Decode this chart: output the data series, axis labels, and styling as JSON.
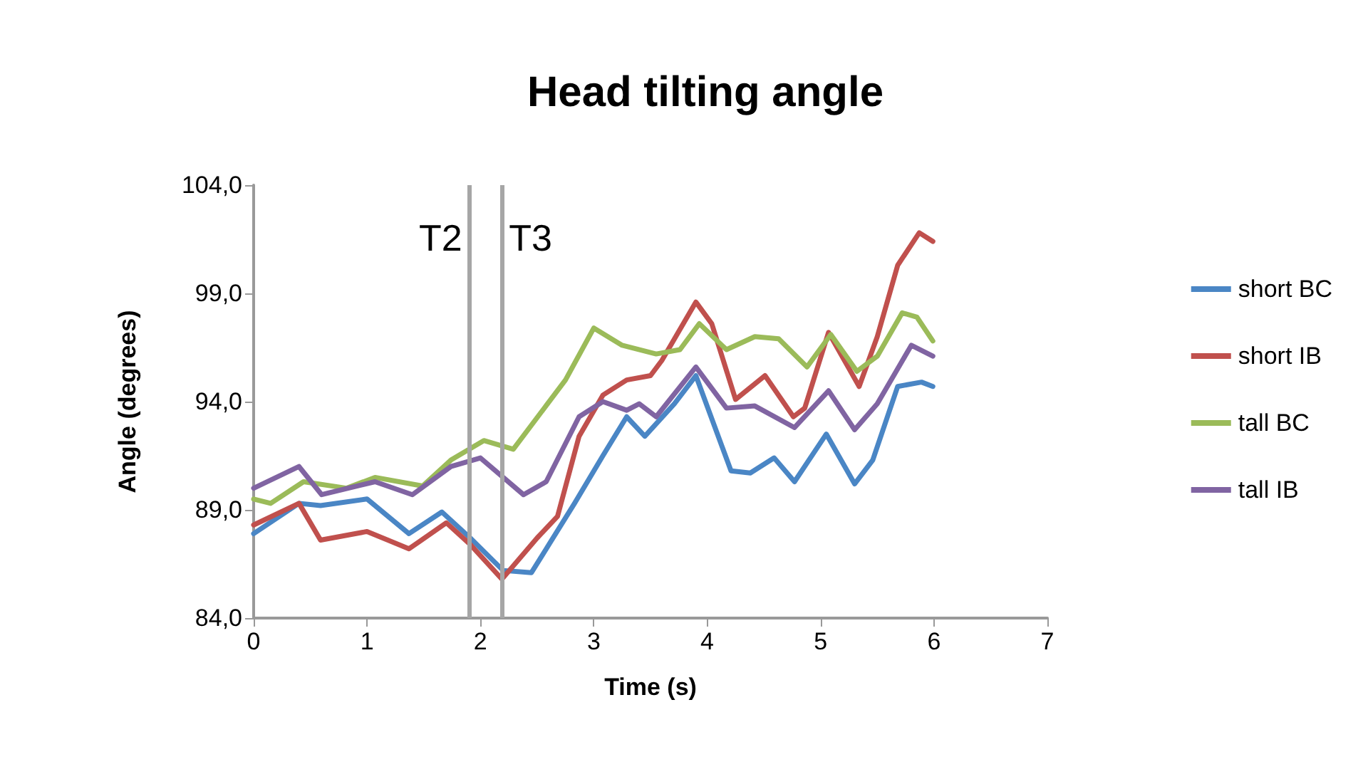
{
  "chart_data": {
    "type": "line",
    "title": "Head tilting angle",
    "xlabel": "Time (s)",
    "ylabel": "Angle (degrees)",
    "xlim": [
      0,
      7
    ],
    "xticks": [
      0,
      1,
      2,
      3,
      4,
      5,
      6,
      7
    ],
    "ylim": [
      84,
      104
    ],
    "yticks": [
      {
        "value": 84,
        "label": "84,0"
      },
      {
        "value": 89,
        "label": "89,0"
      },
      {
        "value": 94,
        "label": "94,0"
      },
      {
        "value": 99,
        "label": "99,0"
      },
      {
        "value": 104,
        "label": "104,0"
      }
    ],
    "grid": false,
    "legend": "right",
    "marker": "none",
    "line_style": "solid",
    "ref_lines": [
      {
        "axis": "x",
        "value": 1.9,
        "label": "T2",
        "color": "#a6a6a6"
      },
      {
        "axis": "x",
        "value": 2.19,
        "label": "T3",
        "color": "#a6a6a6"
      }
    ],
    "series": [
      {
        "name": "short BC",
        "color": "#4a86c5",
        "x": [
          0,
          0.4,
          0.59,
          1.0,
          1.37,
          1.66,
          1.91,
          2.2,
          2.45,
          2.83,
          3.08,
          3.29,
          3.45,
          3.71,
          3.9,
          4.21,
          4.38,
          4.59,
          4.77,
          5.05,
          5.3,
          5.46,
          5.68,
          5.89,
          5.99
        ],
        "values": [
          87.9,
          89.3,
          89.2,
          89.5,
          87.9,
          88.9,
          87.7,
          86.2,
          86.1,
          89.3,
          91.5,
          93.3,
          92.4,
          93.9,
          95.2,
          90.8,
          90.7,
          91.4,
          90.3,
          92.5,
          90.2,
          91.3,
          94.7,
          94.9,
          94.7
        ]
      },
      {
        "name": "short IB",
        "color": "#c0504d",
        "x": [
          0,
          0.4,
          0.59,
          1.0,
          1.37,
          1.7,
          1.91,
          2.19,
          2.5,
          2.68,
          2.87,
          3.08,
          3.29,
          3.5,
          3.6,
          3.9,
          4.04,
          4.25,
          4.51,
          4.76,
          4.86,
          5.07,
          5.34,
          5.5,
          5.68,
          5.87,
          5.99
        ],
        "values": [
          88.3,
          89.3,
          87.6,
          88.0,
          87.2,
          88.4,
          87.4,
          85.8,
          87.7,
          88.7,
          92.4,
          94.3,
          95.0,
          95.2,
          95.9,
          98.6,
          97.6,
          94.1,
          95.2,
          93.3,
          93.7,
          97.2,
          94.7,
          97.0,
          100.3,
          101.8,
          101.4
        ]
      },
      {
        "name": "tall BC",
        "color": "#9bbb59",
        "x": [
          0,
          0.15,
          0.44,
          0.82,
          1.07,
          1.49,
          1.74,
          2.03,
          2.29,
          2.75,
          3.0,
          3.25,
          3.55,
          3.76,
          3.93,
          4.17,
          4.42,
          4.63,
          4.88,
          5.09,
          5.32,
          5.5,
          5.72,
          5.85,
          5.99
        ],
        "values": [
          89.5,
          89.3,
          90.3,
          90.0,
          90.5,
          90.1,
          91.3,
          92.2,
          91.8,
          95.0,
          97.4,
          96.6,
          96.2,
          96.4,
          97.6,
          96.4,
          97.0,
          96.9,
          95.6,
          97.1,
          95.4,
          96.1,
          98.1,
          97.9,
          96.8
        ]
      },
      {
        "name": "tall IB",
        "color": "#8064a2",
        "x": [
          0,
          0.4,
          0.6,
          1.07,
          1.4,
          1.74,
          2.0,
          2.38,
          2.58,
          2.87,
          3.08,
          3.29,
          3.4,
          3.55,
          3.9,
          4.17,
          4.42,
          4.77,
          5.07,
          5.3,
          5.5,
          5.8,
          5.99
        ],
        "values": [
          90.0,
          91.0,
          89.7,
          90.3,
          89.7,
          91.0,
          91.4,
          89.7,
          90.3,
          93.3,
          94.0,
          93.6,
          93.9,
          93.3,
          95.6,
          93.7,
          93.8,
          92.8,
          94.5,
          92.7,
          93.9,
          96.6,
          96.1
        ]
      }
    ]
  }
}
